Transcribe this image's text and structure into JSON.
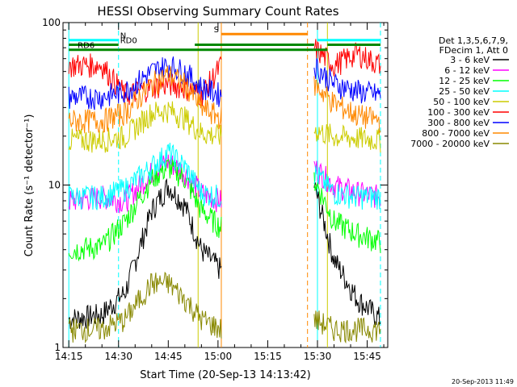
{
  "chart_data": {
    "type": "line",
    "title": "HESSI Observing Summary Count Rates",
    "xlabel": "Start Time (20-Sep-13 14:13:42)",
    "ylabel": "Count Rate (s⁻¹ detector⁻¹)",
    "ylog": true,
    "xlim": [
      "14:15",
      "15:50"
    ],
    "ylim": [
      1,
      100
    ],
    "x_ticks": [
      "14:15",
      "14:30",
      "14:45",
      "15:00",
      "15:15",
      "15:30",
      "15:45"
    ],
    "y_ticks": [
      "1",
      "10",
      "100"
    ],
    "legend_header": [
      "Det 1,3,5,6,7,9,",
      "FDecim 1, Att 0"
    ],
    "legend_position": "right",
    "timestamp": "20-Sep-2013 11:49",
    "series": [
      {
        "name": "3 - 6 keV",
        "color": "#000000",
        "x": [
          "14:15",
          "14:25",
          "14:32",
          "14:40",
          "14:45",
          "14:50",
          "14:55",
          "15:01",
          "15:29",
          "15:35",
          "15:42",
          "15:49"
        ],
        "values": [
          1.5,
          1.6,
          2.2,
          7.0,
          10.0,
          7.5,
          4.0,
          3.0,
          10.0,
          3.5,
          2.0,
          1.5
        ]
      },
      {
        "name": "6 - 12 keV",
        "color": "#ff00ff",
        "x": [
          "14:15",
          "14:25",
          "14:32",
          "14:40",
          "14:45",
          "14:50",
          "14:55",
          "15:01",
          "15:29",
          "15:35",
          "15:42",
          "15:49"
        ],
        "values": [
          8.0,
          8.5,
          8.0,
          12.0,
          14.0,
          12.0,
          9.0,
          8.0,
          13.0,
          10.0,
          9.0,
          8.5
        ]
      },
      {
        "name": "12 - 25 keV",
        "color": "#00ff00",
        "x": [
          "14:15",
          "14:25",
          "14:32",
          "14:40",
          "14:45",
          "14:50",
          "14:55",
          "15:01",
          "15:29",
          "15:35",
          "15:42",
          "15:49"
        ],
        "values": [
          4.0,
          4.2,
          6.0,
          11.0,
          13.0,
          11.0,
          7.0,
          5.5,
          11.0,
          6.0,
          5.0,
          4.5
        ]
      },
      {
        "name": "25 - 50 keV",
        "color": "#00ffff",
        "x": [
          "14:15",
          "14:25",
          "14:32",
          "14:40",
          "14:45",
          "14:50",
          "14:55",
          "15:01",
          "15:29",
          "15:35",
          "15:42",
          "15:49"
        ],
        "values": [
          8.5,
          8.5,
          9.5,
          13.0,
          16.0,
          13.0,
          9.0,
          8.5,
          12.0,
          9.0,
          8.5,
          8.5
        ]
      },
      {
        "name": "50 - 100 keV",
        "color": "#cccc00",
        "x": [
          "14:15",
          "14:25",
          "14:32",
          "14:40",
          "14:45",
          "14:50",
          "14:55",
          "15:01",
          "15:29",
          "15:35",
          "15:42",
          "15:49"
        ],
        "values": [
          19.0,
          19.0,
          20.0,
          28.0,
          29.0,
          26.0,
          21.0,
          20.0,
          22.0,
          20.0,
          19.5,
          19.0
        ]
      },
      {
        "name": "100 - 300 keV",
        "color": "#ff0000",
        "x": [
          "14:15",
          "14:25",
          "14:32",
          "14:40",
          "14:45",
          "14:50",
          "14:55",
          "15:01",
          "15:29",
          "15:35",
          "15:42",
          "15:49"
        ],
        "values": [
          55.0,
          55.0,
          36.0,
          40.0,
          42.0,
          40.0,
          36.0,
          55.0,
          70.0,
          55.0,
          65.0,
          55.0
        ]
      },
      {
        "name": "300 - 800 keV",
        "color": "#0000ff",
        "x": [
          "14:15",
          "14:25",
          "14:32",
          "14:40",
          "14:45",
          "14:50",
          "14:55",
          "15:01",
          "15:29",
          "15:35",
          "15:42",
          "15:49"
        ],
        "values": [
          35.0,
          35.0,
          38.0,
          50.0,
          55.0,
          50.0,
          40.0,
          36.0,
          55.0,
          42.0,
          38.0,
          36.0
        ]
      },
      {
        "name": "800 - 7000 keV",
        "color": "#ff8800",
        "x": [
          "14:15",
          "14:25",
          "14:32",
          "14:40",
          "14:45",
          "14:50",
          "14:55",
          "15:01",
          "15:29",
          "15:35",
          "15:42",
          "15:49"
        ],
        "values": [
          25.0,
          25.0,
          28.0,
          42.0,
          48.0,
          42.0,
          30.0,
          26.0,
          42.0,
          32.0,
          27.0,
          25.0
        ]
      },
      {
        "name": "7000 - 20000 keV",
        "color": "#888800",
        "x": [
          "14:15",
          "14:25",
          "14:32",
          "14:40",
          "14:45",
          "14:50",
          "14:55",
          "15:01",
          "15:29",
          "15:35",
          "15:42",
          "15:49"
        ],
        "values": [
          1.3,
          1.3,
          1.5,
          2.5,
          2.5,
          2.0,
          1.5,
          1.3,
          1.5,
          1.3,
          1.3,
          1.3
        ]
      }
    ],
    "flag_bars": [
      {
        "label": "N",
        "color": "#00ffff",
        "start": "14:15",
        "end": "14:30",
        "level": 78
      },
      {
        "label": "",
        "color": "#00ffff",
        "start": "15:30",
        "end": "15:49",
        "level": 78
      },
      {
        "label": "RD0",
        "color": "#008800",
        "start": "14:15",
        "end": "14:30",
        "level": 73
      },
      {
        "label": "RD6",
        "color": "#008800",
        "start": "14:15",
        "end": "14:30",
        "level": 68
      },
      {
        "label": "",
        "color": "#008800",
        "start": "14:30",
        "end": "15:29",
        "level": 68
      },
      {
        "label": "",
        "color": "#008800",
        "start": "14:53",
        "end": "15:29",
        "level": 73
      },
      {
        "label": "",
        "color": "#008800",
        "start": "15:29",
        "end": "15:33",
        "level": 68
      },
      {
        "label": "",
        "color": "#008800",
        "start": "15:33",
        "end": "15:49",
        "level": 73
      },
      {
        "label": "S",
        "color": "#ff8800",
        "start": "15:01",
        "end": "15:27",
        "level": 85
      }
    ],
    "vlines": [
      {
        "x": "14:15",
        "color": "#00ffff",
        "style": "solid"
      },
      {
        "x": "14:30",
        "color": "#00ffff",
        "style": "dashed"
      },
      {
        "x": "14:54",
        "color": "#cccc00",
        "style": "solid"
      },
      {
        "x": "15:01",
        "color": "#ff8800",
        "style": "solid"
      },
      {
        "x": "15:27",
        "color": "#ff8800",
        "style": "dashed"
      },
      {
        "x": "15:30",
        "color": "#00ffff",
        "style": "solid"
      },
      {
        "x": "15:33",
        "color": "#cccc00",
        "style": "solid"
      },
      {
        "x": "15:49",
        "color": "#00ffff",
        "style": "dashed"
      }
    ]
  }
}
